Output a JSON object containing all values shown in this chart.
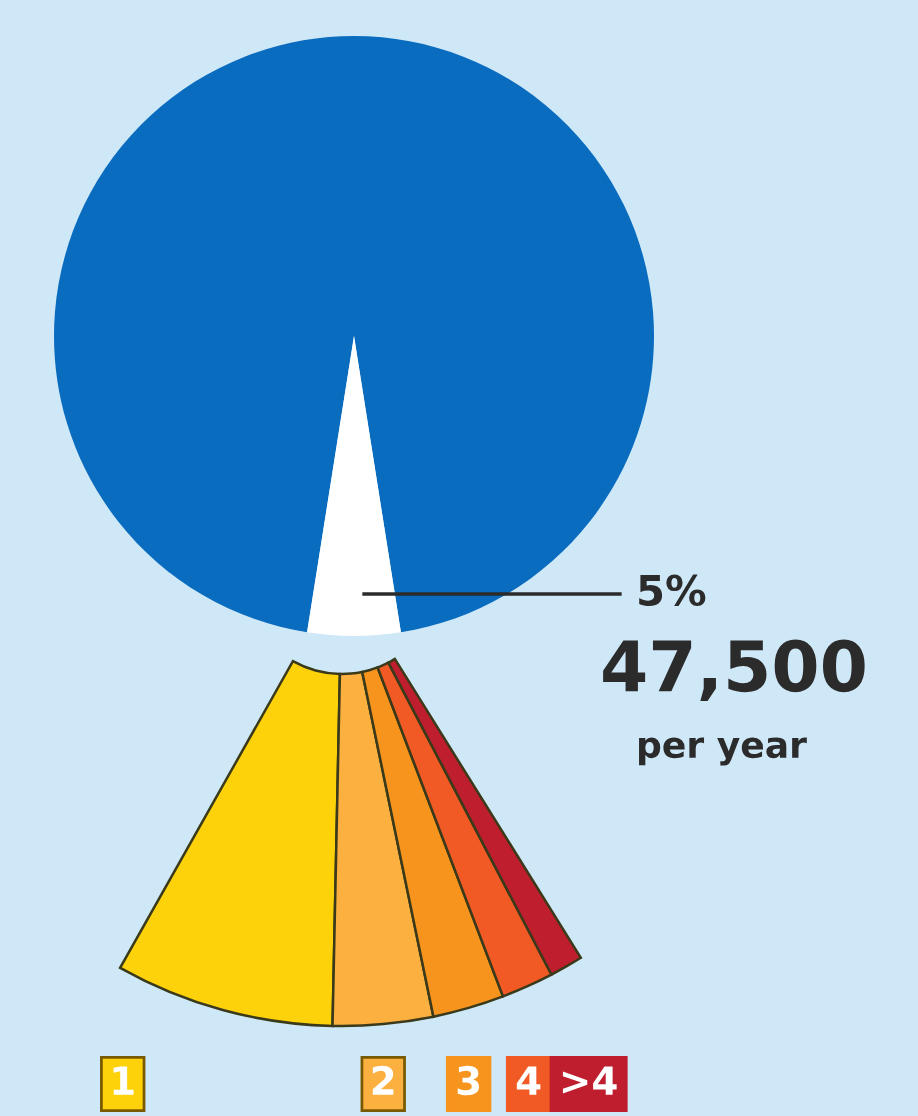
{
  "chart_data": [
    {
      "type": "pie",
      "categories": [
        null,
        null
      ],
      "values": [
        95,
        5
      ],
      "colors": [
        "#0a6cbf",
        "#ffffff"
      ],
      "value_labels": [
        null,
        "5%"
      ],
      "annotations": [
        "47,500",
        "per year"
      ]
    },
    {
      "type": "donut",
      "categories": [
        "1",
        "2",
        "3",
        "4",
        ">4"
      ],
      "values": [
        46,
        21,
        15,
        11,
        7
      ],
      "colors": [
        "#fdd20a",
        "#fbb040",
        "#f7941d",
        "#f15a24",
        "#be1e2d"
      ]
    }
  ]
}
